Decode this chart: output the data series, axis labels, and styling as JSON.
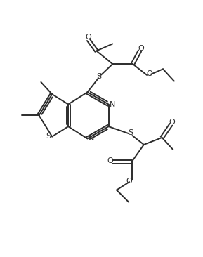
{
  "bg_color": "#ffffff",
  "line_color": "#2c2c2c",
  "line_width": 1.4,
  "figsize": [
    2.89,
    3.66
  ],
  "dpi": 100,
  "xlim": [
    0,
    10
  ],
  "ylim": [
    0,
    12.7
  ]
}
